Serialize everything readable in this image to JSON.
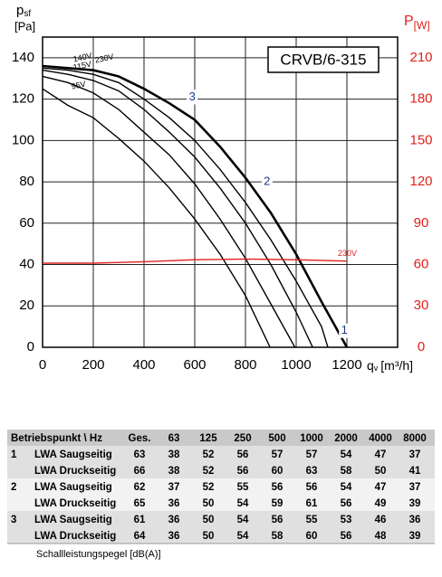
{
  "chart_data": {
    "type": "line",
    "model": "CRVB/6-315",
    "ylabel": {
      "main": "p",
      "sub": "sf"
    },
    "yunit": "[Pa]",
    "y2label": {
      "main": "P",
      "sub": "[W]"
    },
    "xlabel": {
      "main": "q",
      "sub": "v",
      "unit": "[m³/h]"
    },
    "xlim": [
      0,
      1400
    ],
    "xticks": [
      0,
      200,
      400,
      600,
      800,
      1000,
      1200
    ],
    "ylim": [
      0,
      150
    ],
    "yticks": [
      0,
      20,
      40,
      60,
      80,
      100,
      120,
      140
    ],
    "y2lim": [
      0,
      225
    ],
    "y2ticks": [
      0,
      30,
      60,
      90,
      120,
      150,
      180,
      210
    ],
    "grid": true,
    "series": [
      {
        "name": "230V",
        "color": "#000000",
        "width": 2.6,
        "x": [
          0,
          100,
          200,
          300,
          400,
          500,
          600,
          700,
          800,
          900,
          1000,
          1100,
          1200
        ],
        "values": [
          136,
          135,
          134,
          131,
          125,
          118,
          110,
          97,
          82,
          65,
          45,
          22,
          0
        ]
      },
      {
        "color": "#000000",
        "width": 1.4,
        "x": [
          0,
          100,
          200,
          300,
          400,
          500,
          600,
          700,
          800,
          900,
          1000,
          1100,
          1125
        ],
        "values": [
          135,
          134,
          132,
          128,
          120,
          111,
          100,
          86,
          70,
          52,
          32,
          10,
          0
        ]
      },
      {
        "name": "140V",
        "color": "#000000",
        "width": 1.4,
        "x": [
          0,
          100,
          200,
          300,
          400,
          500,
          600,
          700,
          800,
          900,
          1000,
          1065
        ],
        "values": [
          134,
          132,
          129,
          124,
          115,
          104,
          92,
          77,
          60,
          40,
          17,
          0
        ]
      },
      {
        "name": "115V",
        "color": "#000000",
        "width": 1.4,
        "x": [
          0,
          100,
          200,
          300,
          400,
          500,
          600,
          700,
          800,
          900,
          995
        ],
        "values": [
          131,
          128,
          123,
          115,
          104,
          93,
          79,
          62,
          43,
          21,
          0
        ]
      },
      {
        "name": "95V",
        "color": "#000000",
        "width": 1.4,
        "x": [
          0,
          100,
          200,
          300,
          400,
          500,
          600,
          700,
          800,
          897
        ],
        "values": [
          125,
          117,
          111,
          101,
          90,
          77,
          62,
          45,
          25,
          0
        ]
      },
      {
        "name": "230V",
        "color": "#e0201b",
        "width": 1.4,
        "axis": "y2",
        "x": [
          0,
          200,
          400,
          600,
          800,
          1000,
          1200
        ],
        "values": [
          61,
          61,
          62,
          63.5,
          64,
          63.5,
          62.5
        ]
      }
    ],
    "points": [
      {
        "label": "1",
        "x": 1190,
        "y": 8
      },
      {
        "label": "2",
        "x": 885,
        "y": 80
      },
      {
        "label": "3",
        "x": 590,
        "y": 121
      }
    ]
  },
  "table": {
    "header": [
      "Betriebspunkt \\ Hz",
      "Ges.",
      "63",
      "125",
      "250",
      "500",
      "1000",
      "2000",
      "4000",
      "8000"
    ],
    "rows": [
      [
        "1",
        "LWA Saugseitig",
        63,
        38,
        52,
        56,
        57,
        57,
        54,
        47,
        37
      ],
      [
        null,
        "LWA Druckseitig",
        66,
        38,
        52,
        56,
        60,
        63,
        58,
        50,
        41
      ],
      [
        "2",
        "LWA Saugseitig",
        62,
        37,
        52,
        55,
        56,
        56,
        54,
        47,
        37
      ],
      [
        null,
        "LWA Druckseitig",
        65,
        36,
        50,
        54,
        59,
        61,
        56,
        49,
        39
      ],
      [
        "3",
        "LWA Saugseitig",
        61,
        36,
        50,
        54,
        56,
        55,
        53,
        46,
        36
      ],
      [
        null,
        "LWA Druckseitig",
        64,
        36,
        50,
        54,
        58,
        60,
        56,
        48,
        39
      ]
    ],
    "footer": "Schallleistungspegel [dB(A)]"
  }
}
